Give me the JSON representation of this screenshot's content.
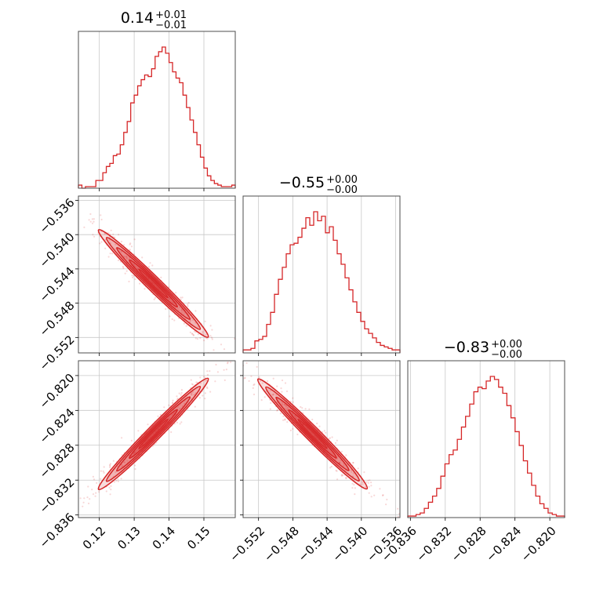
{
  "chart_data": {
    "type": "corner",
    "color": "#d62728",
    "grid": true,
    "parameters": [
      {
        "title": {
          "value": "0.14",
          "plus": "+0.01",
          "minus": "−0.01"
        },
        "range": [
          0.114,
          0.159
        ],
        "ticks": [
          0.12,
          0.13,
          0.14,
          0.15
        ],
        "tick_labels": [
          "0.12",
          "0.13",
          "0.14",
          "0.15"
        ],
        "histogram_counts": [
          2,
          0,
          1,
          1,
          1,
          5,
          5,
          10,
          14,
          16,
          21,
          22,
          28,
          36,
          43,
          55,
          60,
          66,
          70,
          73,
          72,
          77,
          85,
          88,
          91,
          87,
          81,
          75,
          71,
          68,
          60,
          52,
          44,
          36,
          28,
          20,
          13,
          8,
          5,
          3,
          2,
          1,
          1,
          1,
          2
        ]
      },
      {
        "title": {
          "value": "−0.55",
          "plus": "+0.00",
          "minus": "−0.00"
        },
        "range": [
          -0.5538,
          -0.5355
        ],
        "ticks": [
          -0.552,
          -0.548,
          -0.544,
          -0.54,
          -0.536
        ],
        "tick_labels": [
          "−0.552",
          "−0.548",
          "−0.544",
          "−0.540",
          "−0.536"
        ],
        "histogram_counts": [
          2,
          2,
          3,
          8,
          9,
          11,
          19,
          27,
          39,
          49,
          57,
          66,
          72,
          73,
          77,
          83,
          90,
          85,
          94,
          88,
          91,
          80,
          84,
          75,
          66,
          59,
          50,
          42,
          34,
          27,
          21,
          16,
          13,
          10,
          7,
          5,
          4,
          3,
          2,
          2
        ]
      },
      {
        "title": {
          "value": "−0.83",
          "plus": "+0.00",
          "minus": "−0.00"
        },
        "range": [
          -0.8363,
          -0.8183
        ],
        "ticks": [
          -0.836,
          -0.832,
          -0.828,
          -0.824,
          -0.82
        ],
        "tick_labels": [
          "−0.836",
          "−0.832",
          "−0.828",
          "−0.824",
          "−0.820"
        ],
        "histogram_counts": [
          1,
          1,
          2,
          3,
          6,
          10,
          14,
          19,
          27,
          35,
          41,
          44,
          51,
          59,
          66,
          74,
          82,
          85,
          84,
          89,
          92,
          90,
          85,
          81,
          73,
          65,
          56,
          47,
          37,
          29,
          21,
          14,
          9,
          6,
          3,
          2,
          1,
          1
        ]
      }
    ],
    "pair_contours": [
      {
        "x": 0,
        "y": 1,
        "relation": "negative",
        "center": [
          0.1355,
          -0.5457
        ],
        "scatter_extent": [
          [
            0.116,
            -0.5365
          ],
          [
            0.158,
            -0.5532
          ]
        ]
      },
      {
        "x": 0,
        "y": 2,
        "relation": "positive",
        "center": [
          0.1355,
          -0.8267
        ],
        "scatter_extent": [
          [
            0.116,
            -0.8355
          ],
          [
            0.158,
            -0.8185
          ]
        ]
      },
      {
        "x": 1,
        "y": 2,
        "relation": "negative",
        "center": [
          -0.5457,
          -0.8267
        ],
        "scatter_extent": [
          [
            -0.5535,
            -0.8187
          ],
          [
            -0.5365,
            -0.8355
          ]
        ]
      }
    ]
  }
}
